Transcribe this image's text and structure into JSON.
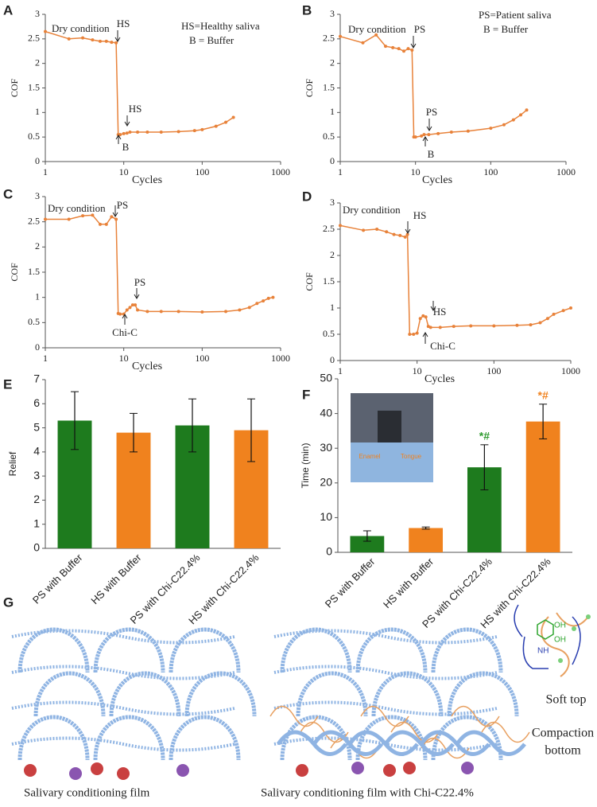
{
  "chart_data": [
    {
      "type": "line",
      "panel": "A",
      "xlabel": "Cycles",
      "ylabel": "COF",
      "color": "#e8823a",
      "xscale": "log",
      "xlim": [
        1,
        1000
      ],
      "ylim": [
        0,
        3
      ],
      "xticks": [
        1,
        10,
        100,
        1000
      ],
      "yticks": [
        0,
        0.5,
        1,
        1.5,
        2,
        2.5,
        3
      ],
      "x": [
        1,
        2,
        3,
        4,
        5,
        6,
        7,
        8,
        8.5,
        9,
        10,
        11,
        12,
        15,
        20,
        30,
        50,
        80,
        100,
        150,
        200,
        250
      ],
      "values": [
        2.65,
        2.5,
        2.52,
        2.48,
        2.45,
        2.45,
        2.43,
        2.42,
        0.55,
        0.55,
        0.57,
        0.58,
        0.6,
        0.6,
        0.6,
        0.6,
        0.61,
        0.63,
        0.65,
        0.72,
        0.8,
        0.9
      ],
      "annotations": [
        "Dry condition",
        "HS",
        "HS",
        "B",
        "HS=Healthy saliva",
        "B = Buffer"
      ]
    },
    {
      "type": "line",
      "panel": "B",
      "xlabel": "Cycles",
      "ylabel": "COF",
      "color": "#e8823a",
      "xscale": "log",
      "xlim": [
        1,
        1000
      ],
      "ylim": [
        0,
        3
      ],
      "xticks": [
        1,
        10,
        100,
        1000
      ],
      "yticks": [
        0,
        0.5,
        1,
        1.5,
        2,
        2.5,
        3
      ],
      "x": [
        1,
        2,
        3,
        4,
        5,
        6,
        7,
        8,
        9,
        9.5,
        10,
        12,
        13,
        15,
        20,
        30,
        50,
        100,
        150,
        200,
        250,
        300
      ],
      "values": [
        2.55,
        2.42,
        2.58,
        2.35,
        2.32,
        2.3,
        2.25,
        2.3,
        2.27,
        0.5,
        0.5,
        0.52,
        0.55,
        0.55,
        0.57,
        0.6,
        0.62,
        0.68,
        0.75,
        0.85,
        0.95,
        1.05
      ],
      "annotations": [
        "Dry condition",
        "PS",
        "PS",
        "B",
        "PS=Patient saliva",
        "B = Buffer"
      ]
    },
    {
      "type": "line",
      "panel": "C",
      "xlabel": "Cycles",
      "ylabel": "COF",
      "color": "#e8823a",
      "xscale": "log",
      "xlim": [
        1,
        1000
      ],
      "ylim": [
        0,
        3
      ],
      "xticks": [
        1,
        10,
        100,
        1000
      ],
      "yticks": [
        0,
        0.5,
        1,
        1.5,
        2,
        2.5,
        3
      ],
      "x": [
        1,
        2,
        3,
        4,
        5,
        6,
        7,
        8,
        8.5,
        9,
        10,
        11,
        12,
        13,
        14,
        15,
        20,
        30,
        50,
        100,
        200,
        300,
        400,
        500,
        600,
        700,
        800
      ],
      "values": [
        2.55,
        2.55,
        2.62,
        2.63,
        2.45,
        2.45,
        2.6,
        2.55,
        0.68,
        0.67,
        0.67,
        0.75,
        0.8,
        0.85,
        0.85,
        0.75,
        0.72,
        0.72,
        0.72,
        0.71,
        0.72,
        0.75,
        0.8,
        0.88,
        0.93,
        0.98,
        1.0
      ],
      "annotations": [
        "Dry condition",
        "PS",
        "PS",
        "Chi-C"
      ]
    },
    {
      "type": "line",
      "panel": "D",
      "xlabel": "Cycles",
      "ylabel": "COF",
      "color": "#e8823a",
      "xscale": "log",
      "xlim": [
        1,
        1000
      ],
      "ylim": [
        0,
        3
      ],
      "xticks": [
        1,
        10,
        100,
        1000
      ],
      "yticks": [
        0,
        0.5,
        1,
        1.5,
        2,
        2.5,
        3
      ],
      "x": [
        1,
        2,
        3,
        4,
        5,
        6,
        7,
        7.5,
        8,
        9,
        10,
        11,
        12,
        13,
        14,
        15,
        20,
        30,
        50,
        100,
        200,
        300,
        400,
        500,
        600,
        800,
        1000
      ],
      "values": [
        2.57,
        2.48,
        2.5,
        2.45,
        2.4,
        2.38,
        2.35,
        2.4,
        0.5,
        0.5,
        0.52,
        0.8,
        0.85,
        0.83,
        0.65,
        0.63,
        0.63,
        0.65,
        0.66,
        0.66,
        0.67,
        0.68,
        0.72,
        0.8,
        0.88,
        0.95,
        1.0
      ],
      "annotations": [
        "Dry condition",
        "HS",
        "HS",
        "Chi-C"
      ]
    },
    {
      "type": "bar",
      "panel": "E",
      "ylabel": "Relief",
      "categories": [
        "PS with Buffer",
        "HS with Buffer",
        "PS with Chi-C22.4%",
        "HS with Chi-C22.4%"
      ],
      "values": [
        5.3,
        4.8,
        5.1,
        4.9
      ],
      "errors": [
        1.2,
        0.8,
        1.1,
        1.3
      ],
      "colors": [
        "#1e7b1e",
        "#f0821e",
        "#1e7b1e",
        "#f0821e"
      ],
      "ylim": [
        0,
        7
      ],
      "yticks": [
        0,
        1,
        2,
        3,
        4,
        5,
        6,
        7
      ]
    },
    {
      "type": "bar",
      "panel": "F",
      "ylabel": "Time (min)",
      "categories": [
        "PS with Buffer",
        "HS with Buffer",
        "PS with Chi-C22.4%",
        "HS with Chi-C22.4%"
      ],
      "values": [
        4.7,
        7.0,
        24.5,
        37.7
      ],
      "errors": [
        1.5,
        0.3,
        6.5,
        5.0
      ],
      "colors": [
        "#1e7b1e",
        "#f0821e",
        "#1e7b1e",
        "#f0821e"
      ],
      "ylim": [
        0,
        50
      ],
      "yticks": [
        0,
        10,
        20,
        30,
        40,
        50
      ],
      "annotations": [
        "*#",
        "*#"
      ],
      "annotation_colors": [
        "#2e9a2e",
        "#f0821e"
      ],
      "inset_labels": [
        "Enamel",
        "Tongue"
      ]
    }
  ],
  "panel_g": {
    "letter": "G",
    "left_caption": "Salivary conditioning film",
    "right_caption": "Salivary conditioning film with Chi-C22.4%",
    "soft_top": "Soft top",
    "compaction_bottom": [
      "Compaction",
      "bottom"
    ],
    "chem_labels": [
      "OH",
      "OH",
      "NH"
    ]
  }
}
